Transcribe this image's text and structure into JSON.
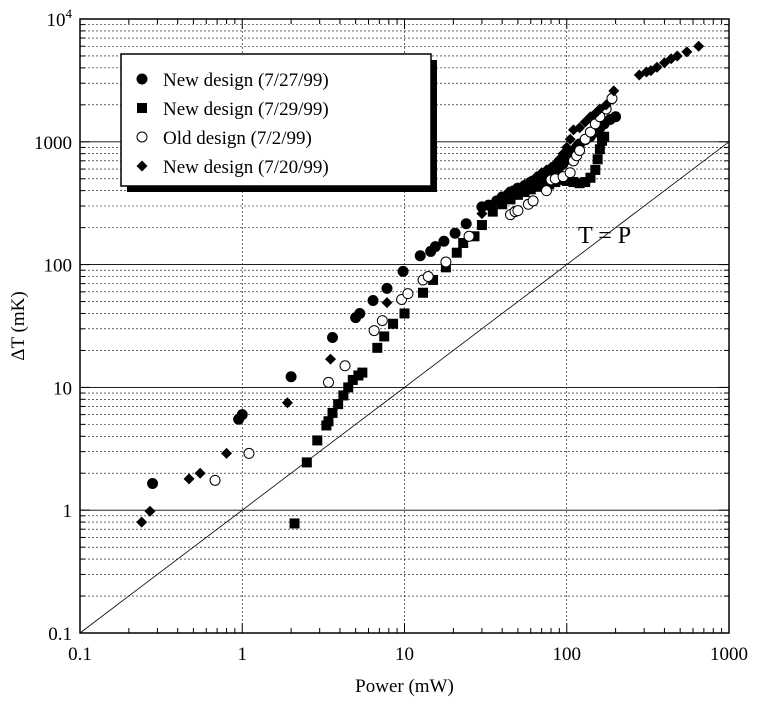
{
  "chart_data": {
    "type": "scatter",
    "title": "",
    "xlabel": "Power (mW)",
    "ylabel": "ΔT (mK)",
    "xscale": "log",
    "yscale": "log",
    "xlim": [
      0.1,
      1000
    ],
    "ylim": [
      0.1,
      10000
    ],
    "x_tick_labels": [
      "0.1",
      "1",
      "10",
      "100",
      "1000"
    ],
    "y_tick_labels": [
      "0.1",
      "1",
      "10",
      "100",
      "1000",
      "10^4"
    ],
    "grid": true,
    "legend_position": "top-left",
    "reference_line": {
      "label": "T = P",
      "slope": 1
    },
    "series": [
      {
        "name": "New design (7/27/99)",
        "marker": "filled-circle",
        "points": [
          [
            0.28,
            1.65
          ],
          [
            0.95,
            5.5
          ],
          [
            1.0,
            6.0
          ],
          [
            2.0,
            12.2
          ],
          [
            3.6,
            25.5
          ],
          [
            5.0,
            37.0
          ],
          [
            5.3,
            40.0
          ],
          [
            6.4,
            51.0
          ],
          [
            7.8,
            64.0
          ],
          [
            9.8,
            88.0
          ],
          [
            12.5,
            118
          ],
          [
            14.5,
            128
          ],
          [
            15.5,
            140
          ],
          [
            17.5,
            155
          ],
          [
            20.5,
            180
          ],
          [
            24.0,
            215
          ],
          [
            30.0,
            295
          ],
          [
            33.0,
            305
          ],
          [
            37.0,
            330
          ],
          [
            40.0,
            355
          ],
          [
            45.0,
            390
          ],
          [
            50.0,
            420
          ],
          [
            55.0,
            440
          ],
          [
            60.0,
            470
          ],
          [
            65.0,
            490
          ],
          [
            70.0,
            520
          ],
          [
            75.0,
            545
          ],
          [
            80.0,
            570
          ],
          [
            85.0,
            595
          ],
          [
            90.0,
            625
          ],
          [
            95.0,
            665
          ],
          [
            100.0,
            720
          ],
          [
            105.0,
            780
          ],
          [
            110.0,
            840
          ],
          [
            115.0,
            900
          ],
          [
            120.0,
            960
          ],
          [
            130.0,
            1040
          ],
          [
            140.0,
            1110
          ],
          [
            150.0,
            1200
          ],
          [
            160.0,
            1300
          ],
          [
            170.0,
            1400
          ],
          [
            185.0,
            1520
          ],
          [
            200.0,
            1600
          ]
        ]
      },
      {
        "name": "New design (7/29/99)",
        "marker": "filled-square",
        "points": [
          [
            2.1,
            0.78
          ],
          [
            2.5,
            2.45
          ],
          [
            2.9,
            3.7
          ],
          [
            3.3,
            4.9
          ],
          [
            3.4,
            5.3
          ],
          [
            3.6,
            6.2
          ],
          [
            3.9,
            7.3
          ],
          [
            4.2,
            8.6
          ],
          [
            4.5,
            10.0
          ],
          [
            4.8,
            11.5
          ],
          [
            5.2,
            12.5
          ],
          [
            5.5,
            13.2
          ],
          [
            6.8,
            21.0
          ],
          [
            7.5,
            26.0
          ],
          [
            8.5,
            33.0
          ],
          [
            10.0,
            40.0
          ],
          [
            13.0,
            59.0
          ],
          [
            15.0,
            75.0
          ],
          [
            18.0,
            95.0
          ],
          [
            21.0,
            125
          ],
          [
            23.0,
            150
          ],
          [
            27.0,
            170
          ],
          [
            30.0,
            210
          ],
          [
            35.0,
            270
          ],
          [
            40.0,
            310
          ],
          [
            45.0,
            340
          ],
          [
            50.0,
            370
          ],
          [
            55.0,
            390
          ],
          [
            60.0,
            410
          ],
          [
            68.0,
            430
          ],
          [
            78.0,
            450
          ],
          [
            85.0,
            470
          ],
          [
            95.0,
            490
          ],
          [
            100.0,
            480
          ],
          [
            110.0,
            470
          ],
          [
            120.0,
            460
          ],
          [
            130.0,
            470
          ],
          [
            140.0,
            510
          ],
          [
            150.0,
            590
          ],
          [
            155.0,
            720
          ],
          [
            160.0,
            870
          ],
          [
            165.0,
            1020
          ],
          [
            170.0,
            1100
          ]
        ]
      },
      {
        "name": "Old design (7/2/99)",
        "marker": "open-circle",
        "points": [
          [
            0.68,
            1.75
          ],
          [
            1.1,
            2.9
          ],
          [
            3.4,
            11.0
          ],
          [
            4.3,
            15.0
          ],
          [
            6.5,
            29.0
          ],
          [
            7.3,
            35.0
          ],
          [
            9.6,
            52.0
          ],
          [
            10.5,
            58.0
          ],
          [
            13.0,
            75.0
          ],
          [
            14.0,
            80.0
          ],
          [
            18.0,
            105
          ],
          [
            25.0,
            170
          ],
          [
            45.0,
            255
          ],
          [
            48.0,
            270
          ],
          [
            50.0,
            275
          ],
          [
            58.0,
            310
          ],
          [
            62.0,
            330
          ],
          [
            75.0,
            400
          ],
          [
            80.0,
            490
          ],
          [
            85.0,
            500
          ],
          [
            95.0,
            520
          ],
          [
            105.0,
            560
          ],
          [
            110.0,
            700
          ],
          [
            115.0,
            770
          ],
          [
            120.0,
            850
          ],
          [
            130.0,
            1050
          ],
          [
            140.0,
            1200
          ],
          [
            150.0,
            1400
          ],
          [
            160.0,
            1600
          ],
          [
            175.0,
            1850
          ],
          [
            190.0,
            2250
          ]
        ]
      },
      {
        "name": "New design (7/20/99)",
        "marker": "filled-diamond",
        "points": [
          [
            0.24,
            0.8
          ],
          [
            0.27,
            0.98
          ],
          [
            0.47,
            1.8
          ],
          [
            0.55,
            2.0
          ],
          [
            0.8,
            2.9
          ],
          [
            1.9,
            7.5
          ],
          [
            3.5,
            17.0
          ],
          [
            7.8,
            49.0
          ],
          [
            30.0,
            260
          ],
          [
            34.0,
            300
          ],
          [
            38.0,
            340
          ],
          [
            42.0,
            370
          ],
          [
            46.0,
            400
          ],
          [
            50.0,
            420
          ],
          [
            55.0,
            450
          ],
          [
            60.0,
            480
          ],
          [
            65.0,
            520
          ],
          [
            70.0,
            560
          ],
          [
            75.0,
            590
          ],
          [
            80.0,
            620
          ],
          [
            85.0,
            660
          ],
          [
            90.0,
            720
          ],
          [
            95.0,
            800
          ],
          [
            100.0,
            900
          ],
          [
            105.0,
            1050
          ],
          [
            110.0,
            1250
          ],
          [
            120.0,
            1300
          ],
          [
            130.0,
            1450
          ],
          [
            140.0,
            1600
          ],
          [
            150.0,
            1700
          ],
          [
            160.0,
            1850
          ],
          [
            175.0,
            2000
          ],
          [
            195.0,
            2600
          ],
          [
            280.0,
            3500
          ],
          [
            310.0,
            3700
          ],
          [
            330.0,
            3800
          ],
          [
            360.0,
            4050
          ],
          [
            400.0,
            4400
          ],
          [
            440.0,
            4750
          ],
          [
            480.0,
            5000
          ],
          [
            550.0,
            5400
          ],
          [
            650.0,
            6000
          ]
        ]
      }
    ]
  }
}
